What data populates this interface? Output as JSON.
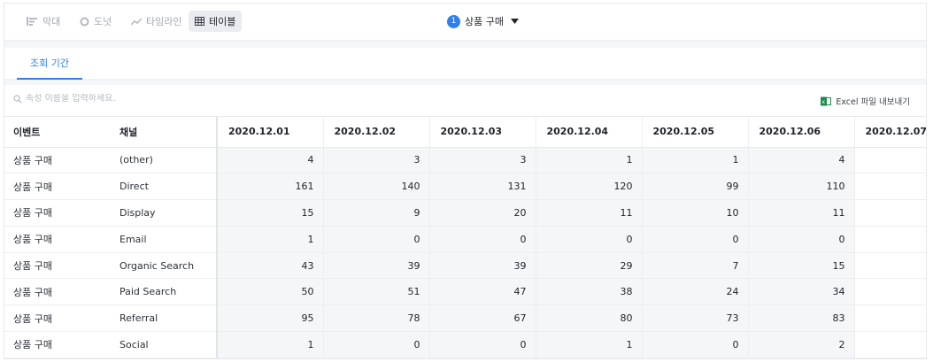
{
  "toolbar": {
    "views": [
      {
        "label": "막대",
        "icon": "bar-chart-icon",
        "active": false
      },
      {
        "label": "도넛",
        "icon": "donut-chart-icon",
        "active": false
      },
      {
        "label": "타임라인",
        "icon": "timeline-icon",
        "active": false
      },
      {
        "label": "테이블",
        "icon": "table-icon",
        "active": true
      }
    ],
    "metric": {
      "index": "1",
      "label": "상품 구매"
    }
  },
  "tabs": [
    {
      "label": "조회 기간",
      "active": true
    }
  ],
  "search": {
    "placeholder": "속성 이름을 입력하세요."
  },
  "export": {
    "label": "Excel 파일 내보내기"
  },
  "table": {
    "headers": [
      "이벤트",
      "채널",
      "2020.12.01",
      "2020.12.02",
      "2020.12.03",
      "2020.12.04",
      "2020.12.05",
      "2020.12.06",
      "2020.12.07"
    ],
    "rows": [
      {
        "event": "상품 구매",
        "channel": "(other)",
        "values": [
          "4",
          "3",
          "3",
          "1",
          "1",
          "4",
          ""
        ]
      },
      {
        "event": "상품 구매",
        "channel": "Direct",
        "values": [
          "161",
          "140",
          "131",
          "120",
          "99",
          "110",
          ""
        ]
      },
      {
        "event": "상품 구매",
        "channel": "Display",
        "values": [
          "15",
          "9",
          "20",
          "11",
          "10",
          "11",
          ""
        ]
      },
      {
        "event": "상품 구매",
        "channel": "Email",
        "values": [
          "1",
          "0",
          "0",
          "0",
          "0",
          "0",
          ""
        ]
      },
      {
        "event": "상품 구매",
        "channel": "Organic Search",
        "values": [
          "43",
          "39",
          "39",
          "29",
          "7",
          "15",
          ""
        ]
      },
      {
        "event": "상품 구매",
        "channel": "Paid Search",
        "values": [
          "50",
          "51",
          "47",
          "38",
          "24",
          "34",
          ""
        ]
      },
      {
        "event": "상품 구매",
        "channel": "Referral",
        "values": [
          "95",
          "78",
          "67",
          "80",
          "73",
          "83",
          ""
        ]
      },
      {
        "event": "상품 구매",
        "channel": "Social",
        "values": [
          "1",
          "0",
          "0",
          "1",
          "0",
          "2",
          ""
        ]
      }
    ]
  },
  "colors": {
    "accent": "#2f80ed",
    "cell_bg": "#f5f6f8",
    "muted": "#a4a8b0"
  }
}
